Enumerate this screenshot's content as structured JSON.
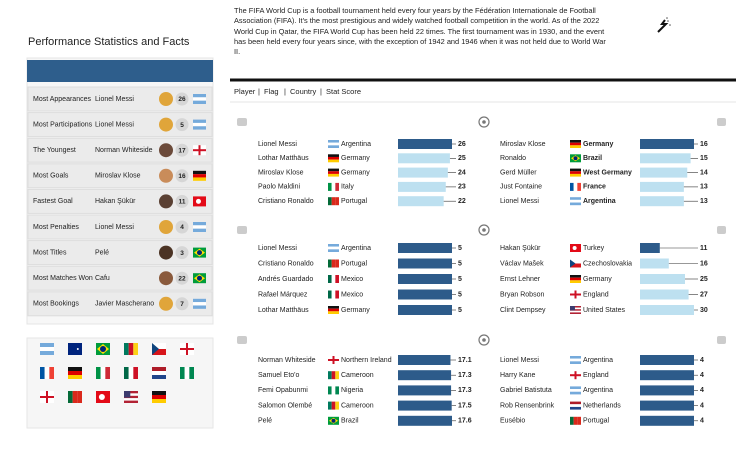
{
  "header": {
    "description": "The FIFA World Cup is a football tournament held every four years by the Fédération Internationale de Football Association (FIFA). It's the most prestigious and widely watched football competition in the world. As of the 2022 World Cup in Qatar, the FIFA World Cup has been held 22 times. The first tournament was in 1930, and the event has been held every four years since, with the exception of 1942 and 1946 when it was not held due to World War II."
  },
  "left": {
    "title": "Performance Statistics and Facts",
    "rows": [
      {
        "label": "Most Appearances",
        "player": "Lionel Messi",
        "value": 26
      },
      {
        "label": "Most Participations",
        "player": "Lionel Messi",
        "value": 5
      },
      {
        "label": "The Youngest",
        "player": "Norman Whiteside",
        "value": 17
      },
      {
        "label": "Most Goals",
        "player": "Miroslav Klose",
        "value": 16
      },
      {
        "label": "Fastest Goal",
        "player": "Hakan Şükür",
        "value": 11
      },
      {
        "label": "Most Penalties",
        "player": "Lionel Messi",
        "value": 4
      },
      {
        "label": "Most Titles",
        "player": "Pelé",
        "value": 3
      },
      {
        "label": "Most Matches Won",
        "player": "Cafu",
        "value": 22
      },
      {
        "label": "Most Bookings",
        "player": "Javier Mascherano",
        "value": 7
      }
    ]
  },
  "columns": [
    "Player",
    "Flag",
    "Country",
    "Stat Score"
  ],
  "panels": [
    {
      "xlim": [
        0,
        26
      ],
      "colors": [
        "#2d5b8a",
        "#bde0f0",
        "#bde0f0",
        "#bde0f0",
        "#bde0f0"
      ],
      "rows": [
        {
          "player": "Lionel Messi",
          "country": "Argentina",
          "value": 26
        },
        {
          "player": "Lothar Matthäus",
          "country": "Germany",
          "value": 25
        },
        {
          "player": "Miroslav Klose",
          "country": "Germany",
          "value": 24
        },
        {
          "player": "Paolo Maldini",
          "country": "Italy",
          "value": 23
        },
        {
          "player": "Cristiano Ronaldo",
          "country": "Portugal",
          "value": 22
        }
      ]
    },
    {
      "xlim": [
        0,
        16
      ],
      "colors": [
        "#2d5b8a",
        "#bde0f0",
        "#bde0f0",
        "#bde0f0",
        "#bde0f0"
      ],
      "rows": [
        {
          "player": "Miroslav Klose",
          "country": "Germany",
          "value": 16
        },
        {
          "player": "Ronaldo",
          "country": "Brazil",
          "value": 15
        },
        {
          "player": "Gerd Müller",
          "country": "West Germany",
          "value": 14
        },
        {
          "player": "Just Fontaine",
          "country": "France",
          "value": 13
        },
        {
          "player": "Lionel Messi",
          "country": "Argentina",
          "value": 13
        }
      ]
    },
    {
      "xlim": [
        0,
        5
      ],
      "colors": [
        "#2d5b8a",
        "#2d5b8a",
        "#2d5b8a",
        "#2d5b8a",
        "#2d5b8a"
      ],
      "rows": [
        {
          "player": "Lionel Messi",
          "country": "Argentina",
          "value": 5
        },
        {
          "player": "Cristiano Ronaldo",
          "country": "Portugal",
          "value": 5
        },
        {
          "player": "Andrés Guardado",
          "country": "Mexico",
          "value": 5
        },
        {
          "player": "Rafael Márquez",
          "country": "Mexico",
          "value": 5
        },
        {
          "player": "Lothar Matthäus",
          "country": "Germany",
          "value": 5
        }
      ]
    },
    {
      "xlim": [
        0,
        30
      ],
      "colors": [
        "#2d5b8a",
        "#bde0f0",
        "#bde0f0",
        "#bde0f0",
        "#bde0f0"
      ],
      "rows": [
        {
          "player": "Hakan Şükür",
          "country": "Turkey",
          "value": 11
        },
        {
          "player": "Václav Mašek",
          "country": "Czechoslovakia",
          "value": 16
        },
        {
          "player": "Ernst Lehner",
          "country": "Germany",
          "value": 25
        },
        {
          "player": "Bryan Robson",
          "country": "England",
          "value": 27
        },
        {
          "player": "Clint Dempsey",
          "country": "United States",
          "value": 30
        }
      ]
    },
    {
      "xlim": [
        0,
        17.6
      ],
      "colors": [
        "#2d5b8a",
        "#2d5b8a",
        "#2d5b8a",
        "#2d5b8a",
        "#2d5b8a"
      ],
      "rows": [
        {
          "player": "Norman Whiteside",
          "country": "Northern Ireland",
          "value": 17.1
        },
        {
          "player": "Samuel Eto'o",
          "country": "Cameroon",
          "value": 17.3
        },
        {
          "player": "Femi Opabunmi",
          "country": "Nigeria",
          "value": 17.3
        },
        {
          "player": "Salomon Olembé",
          "country": "Cameroon",
          "value": 17.5
        },
        {
          "player": "Pelé",
          "country": "Brazil",
          "value": 17.6
        }
      ]
    },
    {
      "xlim": [
        0,
        4
      ],
      "colors": [
        "#2d5b8a",
        "#2d5b8a",
        "#2d5b8a",
        "#2d5b8a",
        "#2d5b8a"
      ],
      "rows": [
        {
          "player": "Lionel Messi",
          "country": "Argentina",
          "value": 4
        },
        {
          "player": "Harry Kane",
          "country": "England",
          "value": 4
        },
        {
          "player": "Gabriel Batistuta",
          "country": "Argentina",
          "value": 4
        },
        {
          "player": "Rob Rensenbrink",
          "country": "Netherlands",
          "value": 4
        },
        {
          "player": "Eusébio",
          "country": "Portugal",
          "value": 4
        }
      ]
    }
  ]
}
